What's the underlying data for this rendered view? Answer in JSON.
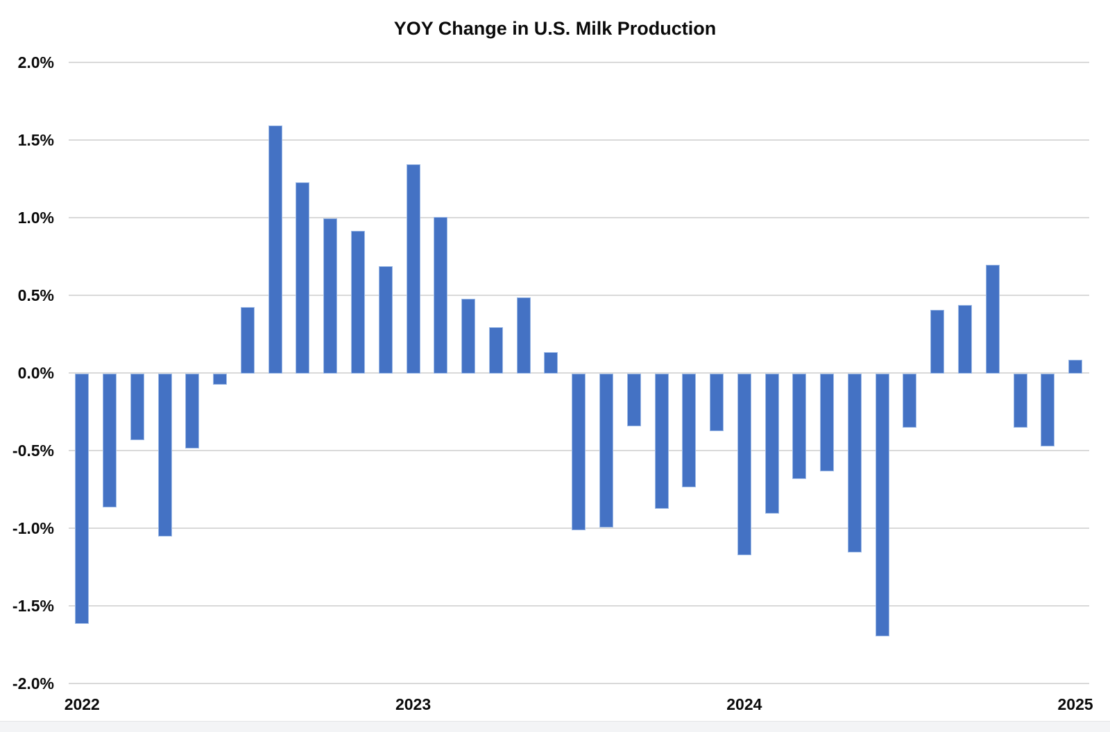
{
  "title": "YOY Change in U.S. Milk Production",
  "colors": {
    "bar": "#4472c4",
    "bar_edge": "#9fbbe6",
    "gridline": "#d9d9d9",
    "text": "#0a0a0a",
    "background": "#ffffff",
    "footer_band": "#f3f4f6"
  },
  "y_axis": {
    "tick_labels": [
      "2.0%",
      "1.5%",
      "1.0%",
      "0.5%",
      "0.0%",
      "-0.5%",
      "-1.0%",
      "-1.5%",
      "-2.0%"
    ],
    "max": 2.0,
    "min": -2.0,
    "step": 0.5
  },
  "x_axis": {
    "year_labels": [
      {
        "label": "2022",
        "month_index": 0
      },
      {
        "label": "2023",
        "month_index": 12
      },
      {
        "label": "2024",
        "month_index": 24
      },
      {
        "label": "2025",
        "month_index": 36
      }
    ]
  },
  "chart_data": {
    "type": "bar",
    "title": "YOY Change in U.S. Milk Production",
    "x": [
      "2022-01",
      "2022-02",
      "2022-03",
      "2022-04",
      "2022-05",
      "2022-06",
      "2022-07",
      "2022-08",
      "2022-09",
      "2022-10",
      "2022-11",
      "2022-12",
      "2023-01",
      "2023-02",
      "2023-03",
      "2023-04",
      "2023-05",
      "2023-06",
      "2023-07",
      "2023-08",
      "2023-09",
      "2023-10",
      "2023-11",
      "2023-12",
      "2024-01",
      "2024-02",
      "2024-03",
      "2024-04",
      "2024-05",
      "2024-06",
      "2024-07",
      "2024-08",
      "2024-09",
      "2024-10",
      "2024-11",
      "2024-12",
      "2025-01"
    ],
    "values": [
      -1.61,
      -0.86,
      -0.43,
      -1.05,
      -0.48,
      -0.07,
      0.43,
      1.6,
      1.23,
      1.0,
      0.92,
      0.69,
      1.35,
      1.01,
      0.48,
      0.3,
      0.49,
      0.14,
      -1.01,
      -0.99,
      -0.34,
      -0.87,
      -0.73,
      -0.37,
      -1.17,
      -0.9,
      -0.68,
      -0.63,
      -1.15,
      -1.69,
      -0.35,
      0.41,
      0.44,
      0.7,
      -0.35,
      -0.47,
      0.09
    ],
    "value_unit": "%",
    "ylim": [
      -2.0,
      2.0
    ],
    "ytick_step": 0.5,
    "grid": true,
    "legend": false,
    "bar_color": "#4472c4"
  }
}
